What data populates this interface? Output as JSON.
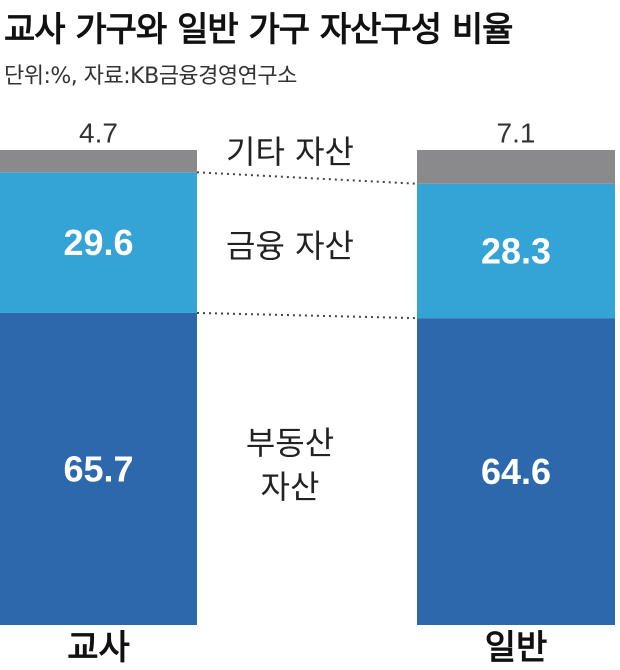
{
  "title": "교사 가구와 일반 가구 자산구성 비율",
  "subtitle": "단위:%, 자료:KB금융경영연구소",
  "colors": {
    "other": "#8a8a8c",
    "financial": "#34a3d6",
    "real_estate": "#2d68ad",
    "value_text_on_bar": "#ffffff",
    "value_text_top": "#333333",
    "dotted_line": "#444444"
  },
  "chart_data": {
    "type": "bar",
    "stacked": true,
    "categories": [
      "교사",
      "일반"
    ],
    "series": [
      {
        "name": "부동산 자산",
        "key": "real_estate",
        "values": [
          65.7,
          64.6
        ],
        "label_lines": [
          "부동산",
          "자산"
        ]
      },
      {
        "name": "금융 자산",
        "key": "financial",
        "values": [
          29.6,
          28.3
        ],
        "label_lines": [
          "금융 자산"
        ]
      },
      {
        "name": "기타 자산",
        "key": "other",
        "values": [
          4.7,
          7.1
        ],
        "label_lines": [
          "기타 자산"
        ]
      }
    ],
    "value_labels": [
      [
        "65.7",
        "29.6",
        "4.7"
      ],
      [
        "64.6",
        "28.3",
        "7.1"
      ]
    ],
    "ylim": [
      0,
      100
    ]
  }
}
